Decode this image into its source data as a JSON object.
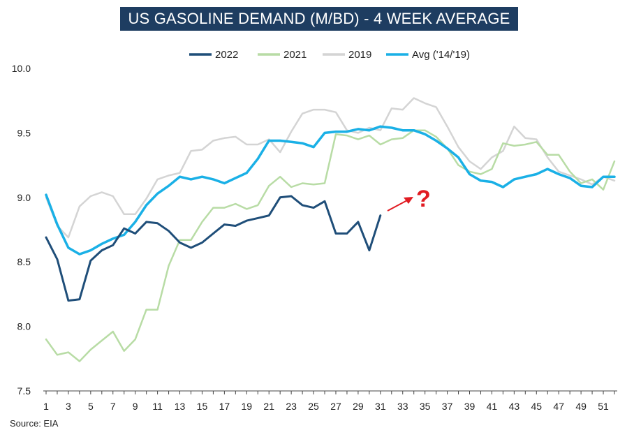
{
  "chart_data": {
    "type": "line",
    "title": "US GASOLINE DEMAND (M/BD) - 4 WEEK AVERAGE",
    "xlabel": "",
    "ylabel": "",
    "ylim": [
      7.5,
      10.0
    ],
    "xlim": [
      1,
      52
    ],
    "y_ticks": [
      "7.5",
      "8.0",
      "8.5",
      "9.0",
      "9.5",
      "10.0"
    ],
    "x_ticks": [
      "1",
      "3",
      "5",
      "7",
      "9",
      "11",
      "13",
      "15",
      "17",
      "19",
      "21",
      "23",
      "25",
      "27",
      "29",
      "31",
      "33",
      "35",
      "37",
      "39",
      "41",
      "43",
      "45",
      "47",
      "49",
      "51"
    ],
    "legend_position": "top",
    "grid": false,
    "series": [
      {
        "name": "2022",
        "color": "#1f4e79",
        "x": [
          1,
          2,
          3,
          4,
          5,
          6,
          7,
          8,
          9,
          10,
          11,
          12,
          13,
          14,
          15,
          16,
          17,
          18,
          19,
          20,
          21,
          22,
          23,
          24,
          25,
          26,
          27,
          28,
          29,
          30,
          31
        ],
        "values": [
          8.69,
          8.52,
          8.2,
          8.21,
          8.51,
          8.59,
          8.63,
          8.76,
          8.72,
          8.81,
          8.8,
          8.74,
          8.65,
          8.61,
          8.65,
          8.72,
          8.79,
          8.78,
          8.82,
          8.84,
          8.86,
          9.0,
          9.01,
          8.94,
          8.92,
          8.97,
          8.72,
          8.72,
          8.81,
          8.59,
          8.86
        ]
      },
      {
        "name": "2021",
        "color": "#b8dca5",
        "x": [
          1,
          2,
          3,
          4,
          5,
          6,
          7,
          8,
          9,
          10,
          11,
          12,
          13,
          14,
          15,
          16,
          17,
          18,
          19,
          20,
          21,
          22,
          23,
          24,
          25,
          26,
          27,
          28,
          29,
          30,
          31,
          32,
          33,
          34,
          35,
          36,
          37,
          38,
          39,
          40,
          41,
          42,
          43,
          44,
          45,
          46,
          47,
          48,
          49,
          50,
          51,
          52
        ],
        "values": [
          7.9,
          7.78,
          7.8,
          7.73,
          7.82,
          7.89,
          7.96,
          7.81,
          7.9,
          8.13,
          8.13,
          8.47,
          8.67,
          8.67,
          8.81,
          8.92,
          8.92,
          8.95,
          8.91,
          8.94,
          9.09,
          9.16,
          9.08,
          9.11,
          9.1,
          9.11,
          9.49,
          9.48,
          9.45,
          9.48,
          9.41,
          9.45,
          9.46,
          9.52,
          9.52,
          9.47,
          9.38,
          9.25,
          9.2,
          9.18,
          9.22,
          9.42,
          9.4,
          9.41,
          9.43,
          9.33,
          9.33,
          9.2,
          9.11,
          9.14,
          9.06,
          9.28
        ]
      },
      {
        "name": "2019",
        "color": "#d4d4d4",
        "x": [
          1,
          2,
          3,
          4,
          5,
          6,
          7,
          8,
          9,
          10,
          11,
          12,
          13,
          14,
          15,
          16,
          17,
          18,
          19,
          20,
          21,
          22,
          23,
          24,
          25,
          26,
          27,
          28,
          29,
          30,
          31,
          32,
          33,
          34,
          35,
          36,
          37,
          38,
          39,
          40,
          41,
          42,
          43,
          44,
          45,
          46,
          47,
          48,
          49,
          50,
          51,
          52
        ],
        "values": [
          9.0,
          8.78,
          8.69,
          8.93,
          9.01,
          9.04,
          9.01,
          8.87,
          8.87,
          8.99,
          9.14,
          9.17,
          9.19,
          9.36,
          9.37,
          9.44,
          9.46,
          9.47,
          9.41,
          9.41,
          9.45,
          9.35,
          9.51,
          9.65,
          9.68,
          9.68,
          9.66,
          9.52,
          9.5,
          9.54,
          9.52,
          9.69,
          9.68,
          9.77,
          9.73,
          9.7,
          9.55,
          9.39,
          9.28,
          9.22,
          9.31,
          9.36,
          9.55,
          9.46,
          9.45,
          9.31,
          9.2,
          9.17,
          9.14,
          9.1,
          9.16,
          9.13
        ]
      },
      {
        "name": "Avg ('14/'19)",
        "color": "#1ab0e6",
        "x": [
          1,
          2,
          3,
          4,
          5,
          6,
          7,
          8,
          9,
          10,
          11,
          12,
          13,
          14,
          15,
          16,
          17,
          18,
          19,
          20,
          21,
          22,
          23,
          24,
          25,
          26,
          27,
          28,
          29,
          30,
          31,
          32,
          33,
          34,
          35,
          36,
          37,
          38,
          39,
          40,
          41,
          42,
          43,
          44,
          45,
          46,
          47,
          48,
          49,
          50,
          51,
          52
        ],
        "values": [
          9.02,
          8.79,
          8.61,
          8.56,
          8.59,
          8.64,
          8.68,
          8.71,
          8.81,
          8.94,
          9.03,
          9.09,
          9.16,
          9.14,
          9.16,
          9.14,
          9.11,
          9.15,
          9.19,
          9.3,
          9.44,
          9.44,
          9.43,
          9.42,
          9.39,
          9.5,
          9.51,
          9.51,
          9.53,
          9.52,
          9.55,
          9.54,
          9.52,
          9.52,
          9.49,
          9.44,
          9.38,
          9.31,
          9.18,
          9.13,
          9.12,
          9.08,
          9.14,
          9.16,
          9.18,
          9.22,
          9.18,
          9.15,
          9.09,
          9.08,
          9.16,
          9.16
        ]
      }
    ],
    "annotation": {
      "text": "?",
      "color": "#e11b22"
    },
    "source": "Source: EIA"
  }
}
